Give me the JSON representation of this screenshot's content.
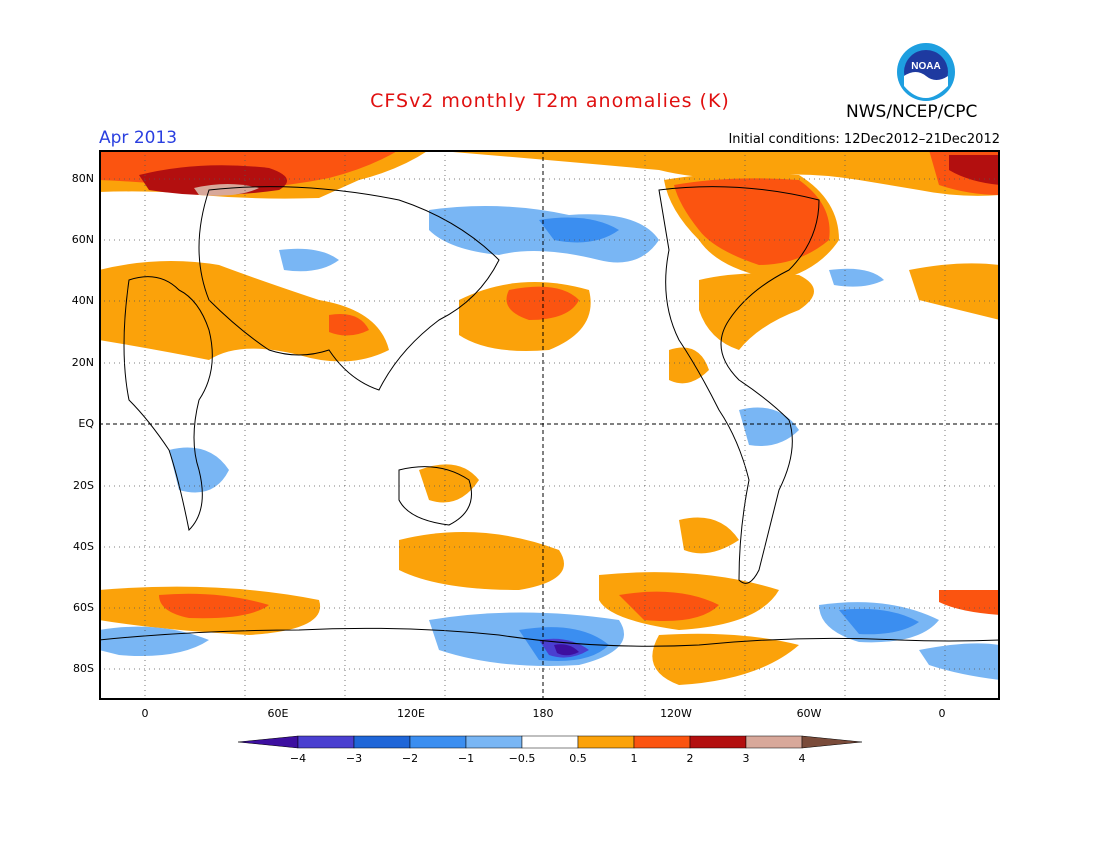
{
  "header": {
    "title": "CFSv2 monthly T2m anomalies (K)",
    "month": "Apr 2013",
    "initial_conditions": "Initial conditions: 12Dec2012–21Dec2012",
    "agency": "NWS/NCEP/CPC",
    "logo_text": "NOAA"
  },
  "colors": {
    "title": "#e01010",
    "month": "#2a3fe0",
    "land_outline": "#000000",
    "grid": "#000000"
  },
  "map": {
    "lat_labels": [
      "80N",
      "60N",
      "40N",
      "20N",
      "EQ",
      "20S",
      "40S",
      "60S",
      "80S"
    ],
    "lon_labels": [
      "0",
      "60E",
      "120E",
      "180",
      "120W",
      "60W",
      "0"
    ]
  },
  "legend": {
    "labels": [
      "−4",
      "−3",
      "−2",
      "−1",
      "−0.5",
      "0.5",
      "1",
      "2",
      "3",
      "4"
    ],
    "colors": [
      "#3d0fa0",
      "#4a3fd0",
      "#1f66d8",
      "#3b8ef0",
      "#79b6f4",
      "#ffffff",
      "#fba20a",
      "#fb5410",
      "#b30f0f",
      "#d8a89a",
      "#7a4b3a"
    ]
  }
}
